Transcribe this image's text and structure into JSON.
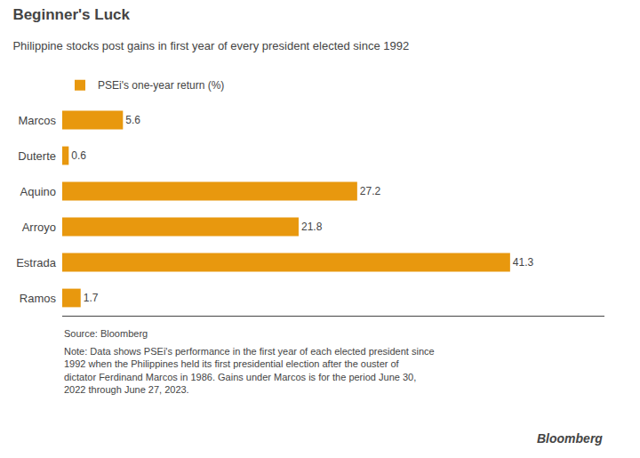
{
  "chart_data": {
    "type": "bar",
    "orientation": "horizontal",
    "title": "Beginner's Luck",
    "subtitle": "Philippine stocks post gains in first year of every president elected since 1992",
    "categories": [
      "Marcos",
      "Duterte",
      "Aquino",
      "Arroyo",
      "Estrada",
      "Ramos"
    ],
    "series": [
      {
        "name": "PSEi's one-year return (%)",
        "color": "#E8980E",
        "values": [
          5.6,
          0.6,
          27.2,
          21.8,
          41.3,
          1.7
        ]
      }
    ],
    "xlim": [
      0,
      50
    ],
    "tick_labels": "y",
    "grid": false,
    "legend": "upper left",
    "data_labels": true,
    "annotations": [
      "Source: Bloomberg",
      "Note: Data shows PSEi's performance in the first year of each elected president since\n1992 when the Philippines held its first presidential election after the ouster of\ndictator Ferdinand Marcos in 1986. Gains under Marcos is for the period June 30,\n2022 through June 27, 2023.",
      "Bloomberg"
    ]
  }
}
